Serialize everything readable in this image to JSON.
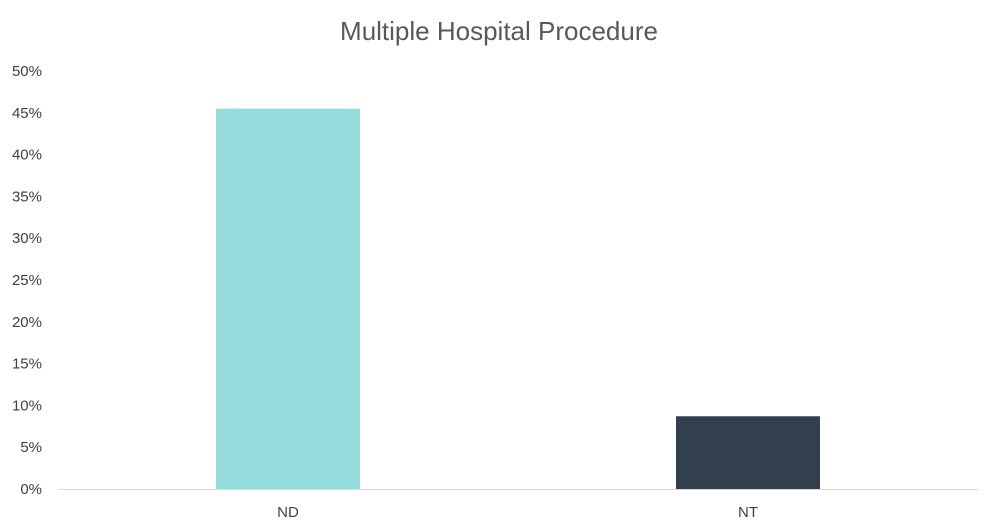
{
  "chart_data": {
    "type": "bar",
    "title": "Multiple Hospital Procedure",
    "xlabel": "",
    "ylabel": "",
    "categories": [
      "ND",
      "NT"
    ],
    "values": [
      0.455,
      0.087
    ],
    "value_format": "percent",
    "ylim": [
      0,
      0.5
    ],
    "yticks": [
      0,
      0.05,
      0.1,
      0.15,
      0.2,
      0.25,
      0.3,
      0.35,
      0.4,
      0.45,
      0.5
    ],
    "ytick_labels": [
      "0%",
      "5%",
      "10%",
      "15%",
      "20%",
      "25%",
      "30%",
      "35%",
      "40%",
      "45%",
      "50%"
    ],
    "bar_colors": [
      "#97dcdd",
      "#323f4c"
    ],
    "axis_color": "#d9d9d9",
    "grid": false,
    "legend": "none"
  }
}
